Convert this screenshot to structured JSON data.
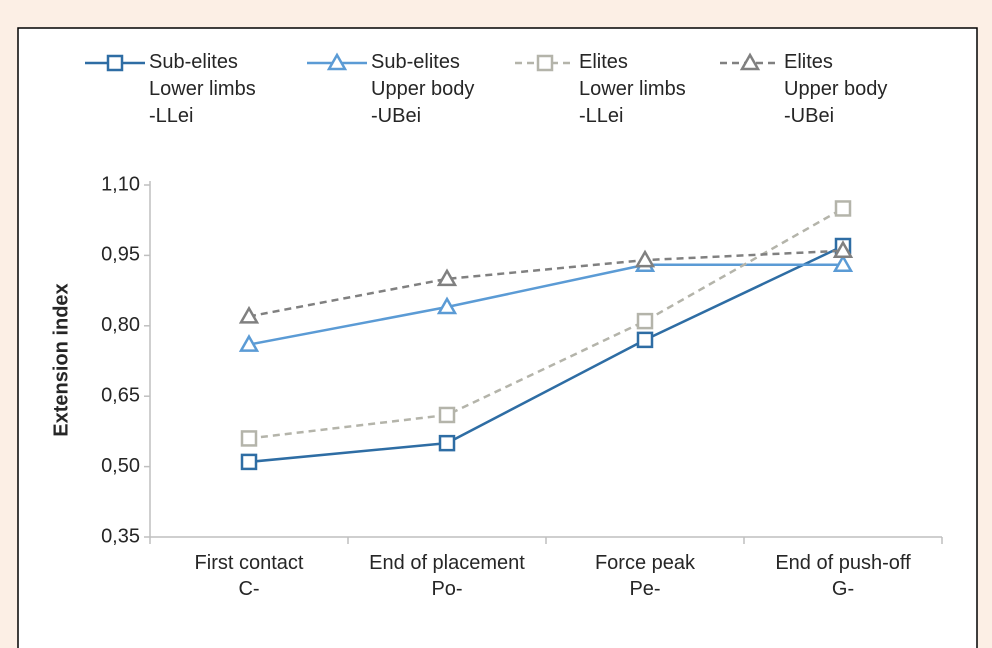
{
  "chart_data": {
    "type": "line",
    "y_label": "Extension index",
    "categories": [
      "First contact\nC-",
      "End of placement\nPo-",
      "Force peak\nPe-",
      "End of push-off\nG-"
    ],
    "ylim": [
      0.35,
      1.1
    ],
    "yticks": [
      {
        "value": 0.35,
        "label": "0,35"
      },
      {
        "value": 0.5,
        "label": "0,50"
      },
      {
        "value": 0.65,
        "label": "0,65"
      },
      {
        "value": 0.8,
        "label": "0,80"
      },
      {
        "value": 0.95,
        "label": "0,95"
      },
      {
        "value": 1.1,
        "label": "1,10"
      }
    ],
    "grid": false,
    "legend": "top",
    "series": [
      {
        "name": "Sub-elites\nLower limbs\n-LLei",
        "color": "#2e6da4",
        "marker": "square",
        "dash": false,
        "values": [
          0.51,
          0.55,
          0.77,
          0.97
        ]
      },
      {
        "name": "Sub-elites\nUpper body\n-UBei",
        "color": "#5b9bd5",
        "marker": "triangle",
        "dash": false,
        "values": [
          0.76,
          0.84,
          0.93,
          0.93
        ]
      },
      {
        "name": "Elites\nLower limbs\n-LLei",
        "color": "#b4b4aa",
        "marker": "square",
        "dash": true,
        "values": [
          0.56,
          0.61,
          0.81,
          1.05
        ]
      },
      {
        "name": "Elites\nUpper body\n-UBei",
        "color": "#808080",
        "marker": "triangle",
        "dash": true,
        "values": [
          0.82,
          0.9,
          0.94,
          0.96
        ]
      }
    ]
  }
}
